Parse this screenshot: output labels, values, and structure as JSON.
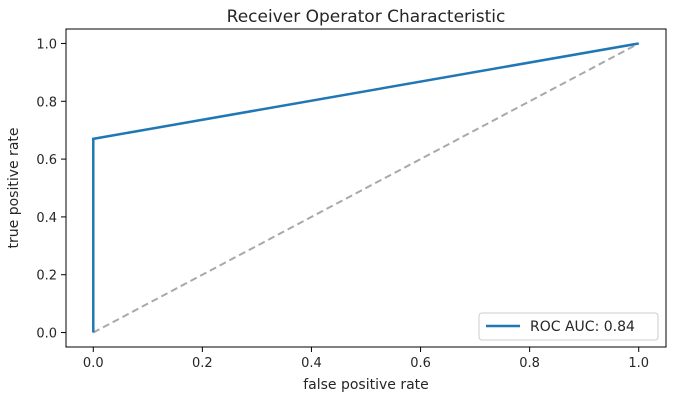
{
  "chart_data": {
    "type": "line",
    "title": "Receiver Operator Characteristic",
    "xlabel": "false positive rate",
    "ylabel": "true positive rate",
    "xlim": [
      -0.05,
      1.05
    ],
    "ylim": [
      -0.05,
      1.05
    ],
    "grid": false,
    "x_ticks": [
      {
        "value": 0.0,
        "label": "0.0"
      },
      {
        "value": 0.2,
        "label": "0.2"
      },
      {
        "value": 0.4,
        "label": "0.4"
      },
      {
        "value": 0.6,
        "label": "0.6"
      },
      {
        "value": 0.8,
        "label": "0.8"
      },
      {
        "value": 1.0,
        "label": "1.0"
      }
    ],
    "y_ticks": [
      {
        "value": 0.0,
        "label": "0.0"
      },
      {
        "value": 0.2,
        "label": "0.2"
      },
      {
        "value": 0.4,
        "label": "0.4"
      },
      {
        "value": 0.6,
        "label": "0.6"
      },
      {
        "value": 0.8,
        "label": "0.8"
      },
      {
        "value": 1.0,
        "label": "1.0"
      }
    ],
    "series": [
      {
        "name": "ROC AUC: 0.84",
        "style": "solid",
        "color": "#1f77b4",
        "x": [
          0.0,
          0.0,
          1.0
        ],
        "y": [
          0.0,
          0.67,
          1.0
        ]
      },
      {
        "style": "dashed",
        "color": "#a9a9a9",
        "x": [
          0.0,
          1.0
        ],
        "y": [
          0.0,
          1.0
        ]
      }
    ],
    "legend": {
      "position": "lower-right",
      "entries": [
        "ROC AUC: 0.84"
      ]
    }
  }
}
